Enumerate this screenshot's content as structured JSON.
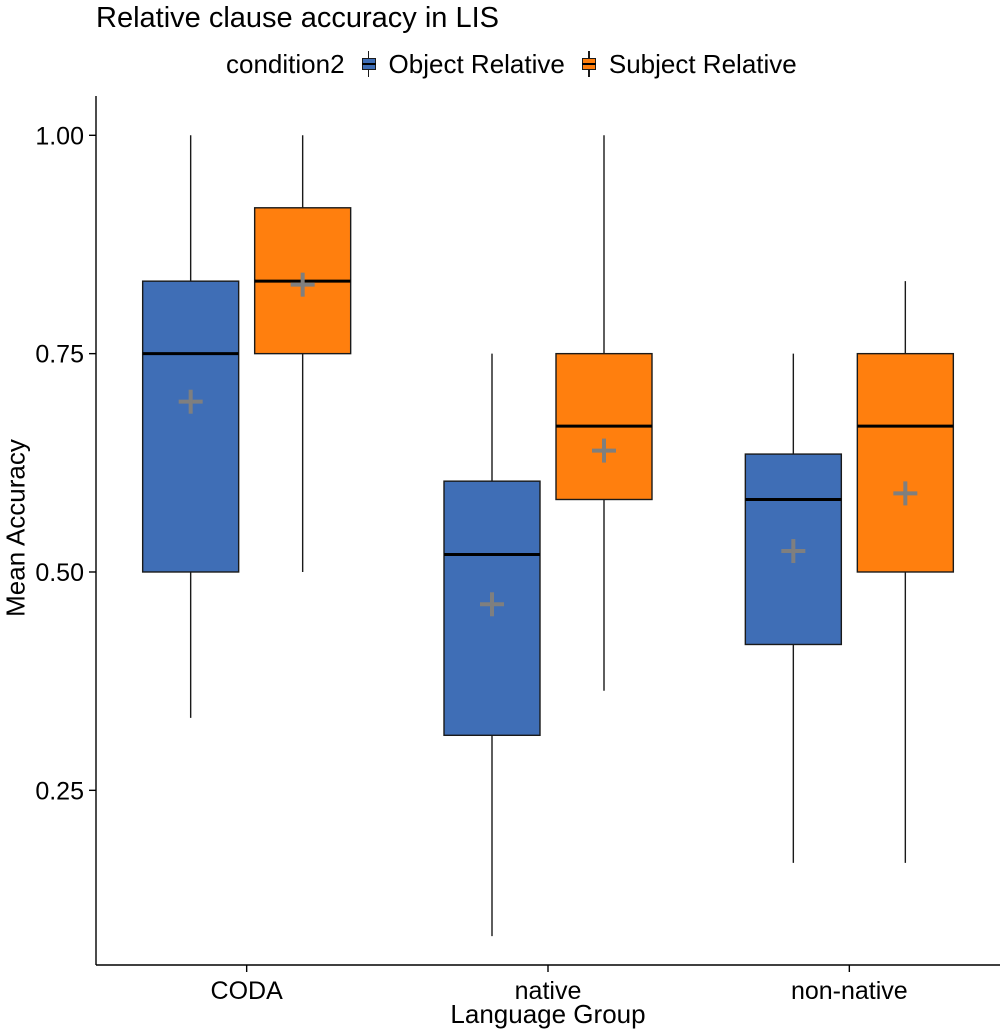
{
  "chart_data": {
    "type": "boxplot",
    "title": "Relative clause accuracy in LIS",
    "xlabel": "Language Group",
    "ylabel": "Mean Accuracy",
    "ylim": [
      0.05,
      1.045
    ],
    "yticks": [
      "0.25",
      "0.50",
      "0.75",
      "1.00"
    ],
    "categories": [
      "CODA",
      "native",
      "non-native"
    ],
    "legend": {
      "title": "condition2",
      "position": "top"
    },
    "grid": false,
    "series": [
      {
        "name": "Object Relative",
        "color": "#3F6EB6",
        "boxes": [
          {
            "min": 0.333,
            "q1": 0.5,
            "median": 0.75,
            "q3": 0.833,
            "max": 1.0,
            "mean": 0.695
          },
          {
            "min": 0.083,
            "q1": 0.313,
            "median": 0.52,
            "q3": 0.604,
            "max": 0.75,
            "mean": 0.463
          },
          {
            "min": 0.167,
            "q1": 0.417,
            "median": 0.583,
            "q3": 0.635,
            "max": 0.75,
            "mean": 0.524
          }
        ]
      },
      {
        "name": "Subject Relative",
        "color": "#FF7F0E",
        "boxes": [
          {
            "min": 0.5,
            "q1": 0.75,
            "median": 0.833,
            "q3": 0.917,
            "max": 1.0,
            "mean": 0.829
          },
          {
            "min": 0.364,
            "q1": 0.583,
            "median": 0.667,
            "q3": 0.75,
            "max": 1.0,
            "mean": 0.639
          },
          {
            "min": 0.167,
            "q1": 0.5,
            "median": 0.667,
            "q3": 0.75,
            "max": 0.833,
            "mean": 0.59
          }
        ]
      }
    ],
    "mean_marker": {
      "shape": "plus",
      "color": "#7F7F7F"
    }
  }
}
